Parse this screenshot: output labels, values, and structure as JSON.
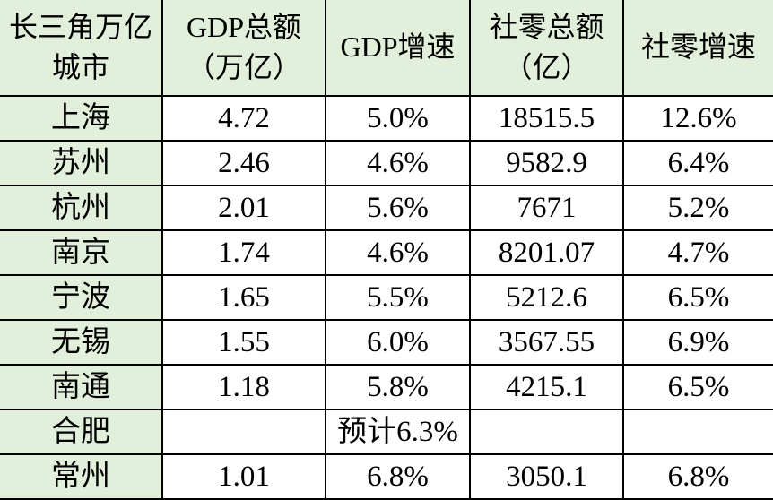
{
  "colors": {
    "accent_fill": "#e2efda",
    "cell_fill": "#ffffff",
    "border": "#000000",
    "text": "#000000"
  },
  "table": {
    "header": {
      "city": "长三角万亿\n城市",
      "gdp_total": "GDP总额\n（万亿）",
      "gdp_growth": "GDP增速",
      "retail_total": "社零总额\n（亿）",
      "retail_growth": "社零增速"
    },
    "rows": [
      {
        "city": "上海",
        "gdp": "4.72",
        "gdp_growth": "5.0%",
        "retail": "18515.5",
        "retail_growth": "12.6%"
      },
      {
        "city": "苏州",
        "gdp": "2.46",
        "gdp_growth": "4.6%",
        "retail": "9582.9",
        "retail_growth": "6.4%"
      },
      {
        "city": "杭州",
        "gdp": "2.01",
        "gdp_growth": "5.6%",
        "retail": "7671",
        "retail_growth": "5.2%"
      },
      {
        "city": "南京",
        "gdp": "1.74",
        "gdp_growth": "4.6%",
        "retail": "8201.07",
        "retail_growth": "4.7%"
      },
      {
        "city": "宁波",
        "gdp": "1.65",
        "gdp_growth": "5.5%",
        "retail": "5212.6",
        "retail_growth": "6.5%"
      },
      {
        "city": "无锡",
        "gdp": "1.55",
        "gdp_growth": "6.0%",
        "retail": "3567.55",
        "retail_growth": "6.9%"
      },
      {
        "city": "南通",
        "gdp": "1.18",
        "gdp_growth": "5.8%",
        "retail": "4215.1",
        "retail_growth": "6.5%"
      },
      {
        "city": "合肥",
        "gdp": "",
        "gdp_growth": "预计6.3%",
        "retail": "",
        "retail_growth": ""
      },
      {
        "city": "常州",
        "gdp": "1.01",
        "gdp_growth": "6.8%",
        "retail": "3050.1",
        "retail_growth": "6.8%"
      }
    ]
  },
  "chart_data": {
    "type": "table",
    "columns": [
      "长三角万亿城市",
      "GDP总额（万亿）",
      "GDP增速",
      "社零总额（亿）",
      "社零增速"
    ],
    "rows": [
      [
        "上海",
        "4.72",
        "5.0%",
        "18515.5",
        "12.6%"
      ],
      [
        "苏州",
        "2.46",
        "4.6%",
        "9582.9",
        "6.4%"
      ],
      [
        "杭州",
        "2.01",
        "5.6%",
        "7671",
        "5.2%"
      ],
      [
        "南京",
        "1.74",
        "4.6%",
        "8201.07",
        "4.7%"
      ],
      [
        "宁波",
        "1.65",
        "5.5%",
        "5212.6",
        "6.5%"
      ],
      [
        "无锡",
        "1.55",
        "6.0%",
        "3567.55",
        "6.9%"
      ],
      [
        "南通",
        "1.18",
        "5.8%",
        "4215.1",
        "6.5%"
      ],
      [
        "合肥",
        "",
        "预计6.3%",
        "",
        ""
      ],
      [
        "常州",
        "1.01",
        "6.8%",
        "3050.1",
        "6.8%"
      ]
    ]
  }
}
